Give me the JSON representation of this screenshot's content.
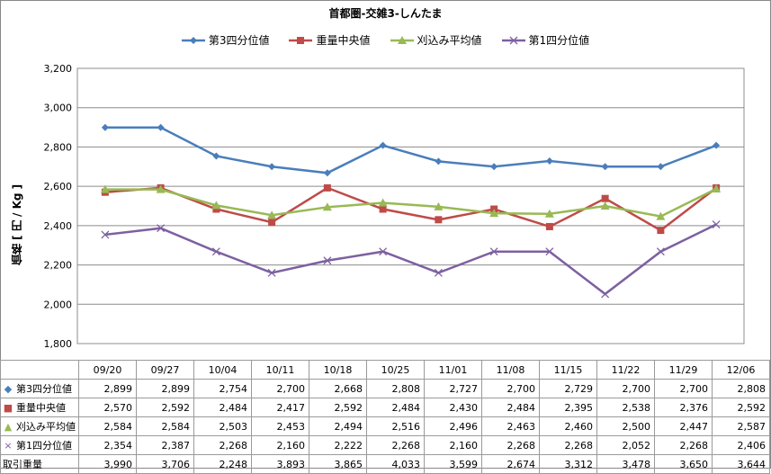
{
  "chart_data": {
    "type": "line",
    "title": "首都圏-交雑3-しんたま",
    "ylabel": "価格 [ 円 / Kg ]",
    "ylim": [
      1800,
      3200
    ],
    "ystep": 200,
    "yticks": [
      "1,800",
      "2,000",
      "2,200",
      "2,400",
      "2,600",
      "2,800",
      "3,000",
      "3,200"
    ],
    "grid": true,
    "legend_position": "top",
    "categories": [
      "09/20",
      "09/27",
      "10/04",
      "10/11",
      "10/18",
      "10/25",
      "11/01",
      "11/08",
      "11/15",
      "11/22",
      "11/29",
      "12/06"
    ],
    "series": [
      {
        "name": "第3四分位値",
        "color": "#4a7ebb",
        "marker": "diamond",
        "values": [
          2899,
          2899,
          2754,
          2700,
          2668,
          2808,
          2727,
          2700,
          2729,
          2700,
          2700,
          2808
        ],
        "labels": [
          "2,899",
          "2,899",
          "2,754",
          "2,700",
          "2,668",
          "2,808",
          "2,727",
          "2,700",
          "2,729",
          "2,700",
          "2,700",
          "2,808"
        ]
      },
      {
        "name": "重量中央値",
        "color": "#be4b48",
        "marker": "square",
        "values": [
          2570,
          2592,
          2484,
          2417,
          2592,
          2484,
          2430,
          2484,
          2395,
          2538,
          2376,
          2592
        ],
        "labels": [
          "2,570",
          "2,592",
          "2,484",
          "2,417",
          "2,592",
          "2,484",
          "2,430",
          "2,484",
          "2,395",
          "2,538",
          "2,376",
          "2,592"
        ]
      },
      {
        "name": "刈込み平均値",
        "color": "#98b954",
        "marker": "triangle",
        "values": [
          2584,
          2584,
          2503,
          2453,
          2494,
          2516,
          2496,
          2463,
          2460,
          2500,
          2447,
          2587
        ],
        "labels": [
          "2,584",
          "2,584",
          "2,503",
          "2,453",
          "2,494",
          "2,516",
          "2,496",
          "2,463",
          "2,460",
          "2,500",
          "2,447",
          "2,587"
        ]
      },
      {
        "name": "第1四分位値",
        "color": "#7d60a0",
        "marker": "x",
        "values": [
          2354,
          2387,
          2268,
          2160,
          2222,
          2268,
          2160,
          2268,
          2268,
          2052,
          2268,
          2406
        ],
        "labels": [
          "2,354",
          "2,387",
          "2,268",
          "2,160",
          "2,222",
          "2,268",
          "2,160",
          "2,268",
          "2,268",
          "2,052",
          "2,268",
          "2,406"
        ]
      }
    ],
    "extra_rows": [
      {
        "name": "取引重量",
        "labels": [
          "3,990",
          "3,706",
          "2,248",
          "3,893",
          "3,865",
          "4,033",
          "3,599",
          "2,674",
          "3,312",
          "3,478",
          "3,650",
          "3,644"
        ]
      }
    ]
  }
}
